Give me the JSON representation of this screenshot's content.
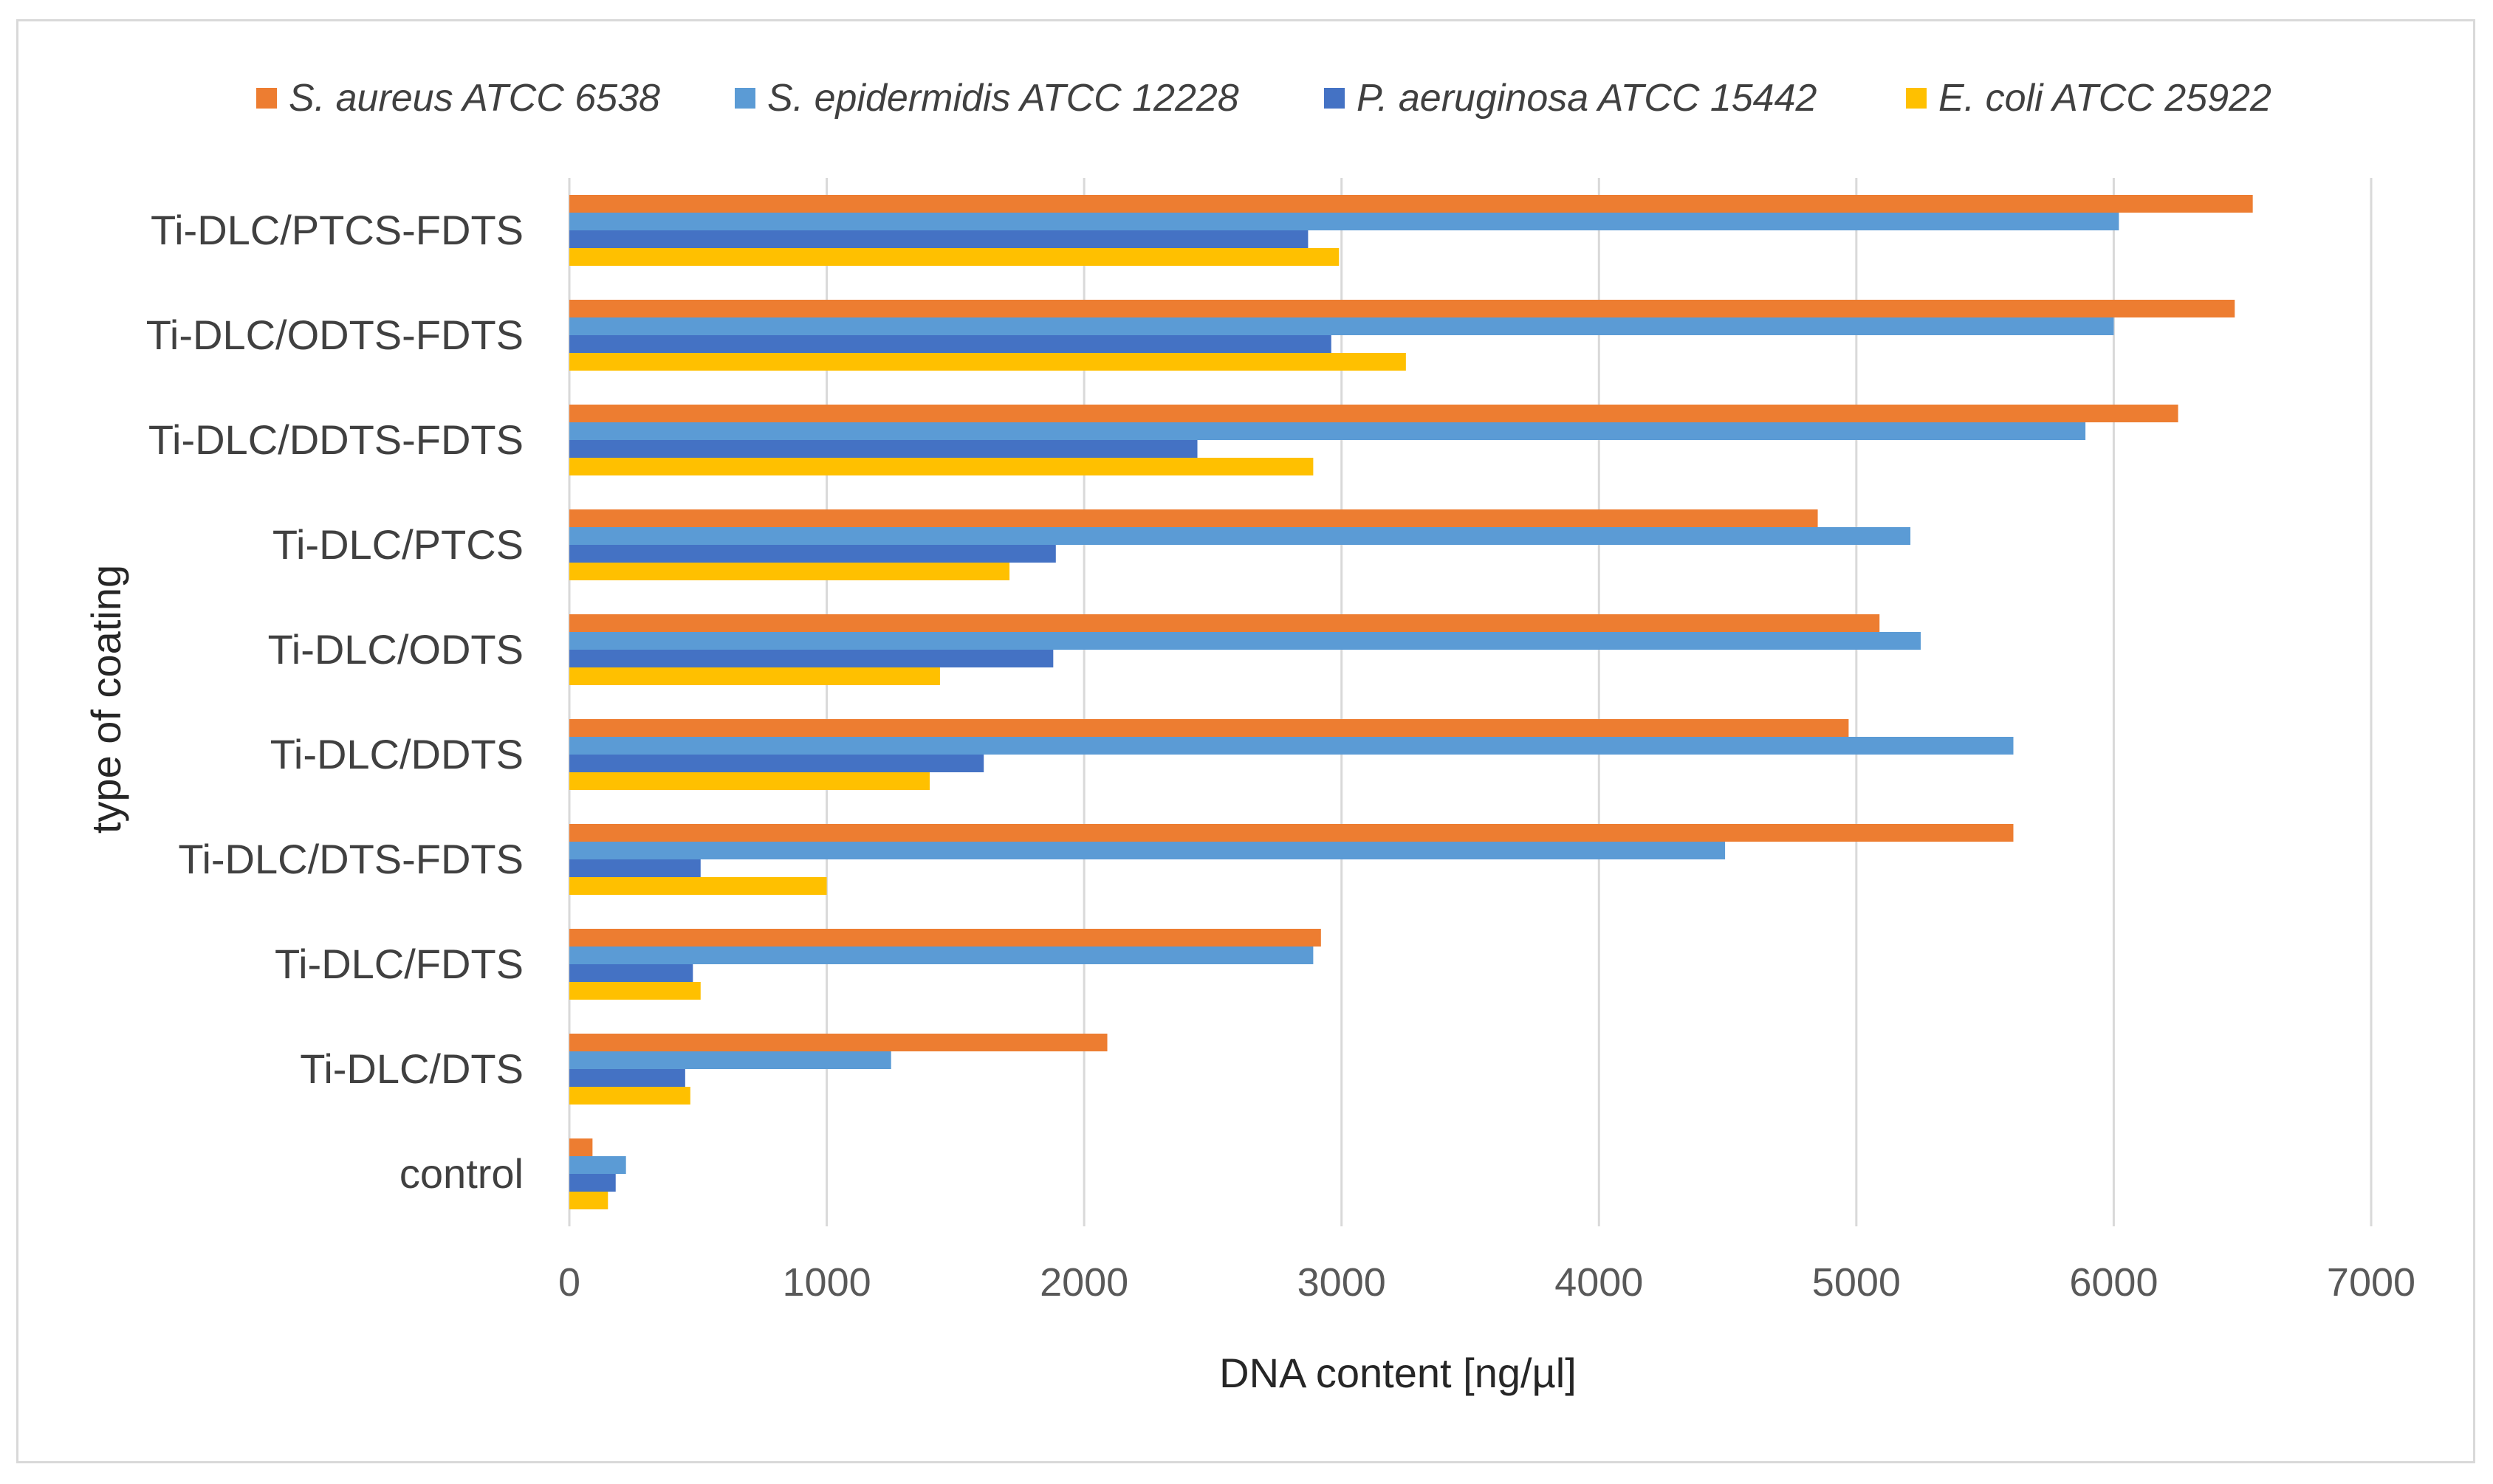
{
  "chart_data": {
    "type": "bar",
    "orientation": "horizontal",
    "xlabel": "DNA content [ng/µl]",
    "ylabel": "type of coating",
    "xlim": [
      0,
      7000
    ],
    "xticks": [
      0,
      1000,
      2000,
      3000,
      4000,
      5000,
      6000,
      7000
    ],
    "grid": "vertical",
    "legend_position": "top",
    "categories": [
      "control",
      "Ti-DLC/DTS",
      "Ti-DLC/FDTS",
      "Ti-DLC/DTS-FDTS",
      "Ti-DLC/DDTS",
      "Ti-DLC/ODTS",
      "Ti-DLC/PTCS",
      "Ti-DLC/DDTS-FDTS",
      "Ti-DLC/ODTS-FDTS",
      "Ti-DLC/PTCS-FDTS"
    ],
    "series": [
      {
        "name": "S. aureus ATCC 6538",
        "color": "#ED7D31",
        "values": [
          90,
          2090,
          2920,
          5610,
          4970,
          5090,
          4850,
          6250,
          6470,
          6540
        ]
      },
      {
        "name": "S. epidermidis ATCC 12228",
        "color": "#5B9BD5",
        "values": [
          220,
          1250,
          2890,
          4490,
          5610,
          5250,
          5210,
          5890,
          6000,
          6020
        ]
      },
      {
        "name": "P. aeruginosa ATCC 15442",
        "color": "#4472C4",
        "values": [
          180,
          450,
          480,
          510,
          1610,
          1880,
          1890,
          2440,
          2960,
          2870
        ]
      },
      {
        "name": "E. coli ATCC 25922",
        "color": "#FFC000",
        "values": [
          150,
          470,
          510,
          1000,
          1400,
          1440,
          1710,
          2890,
          3250,
          2990
        ]
      }
    ]
  }
}
